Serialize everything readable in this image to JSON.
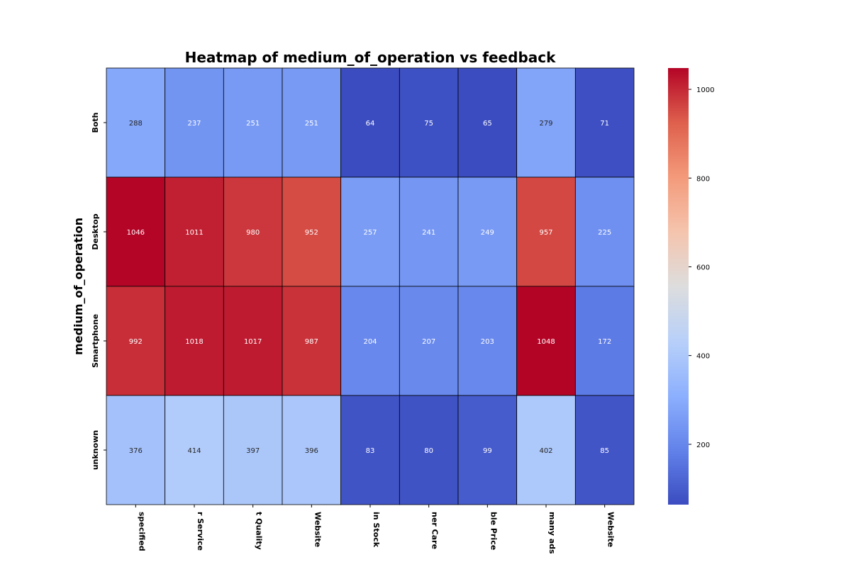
{
  "chart_data": {
    "type": "heatmap",
    "title": "Heatmap of medium_of_operation vs feedback",
    "xlabel": "",
    "ylabel": "medium_of_operation",
    "rows": [
      "Both",
      "Desktop",
      "Smartphone",
      "unknown"
    ],
    "columns": [
      "Not specified",
      "Customer Service",
      "Product Quality",
      "User-Friendly Website",
      "Products in Stock",
      "Customer Care",
      "Reasonable Price",
      "Too many ads",
      "Website"
    ],
    "column_tick_labels_visible": [
      "specified",
      "r Service",
      "t Quality",
      "Website",
      "in Stock",
      "ner Care",
      "ble Price",
      "many ads",
      "Website"
    ],
    "values": [
      [
        288,
        237,
        251,
        251,
        64,
        75,
        65,
        279,
        71
      ],
      [
        1046,
        1011,
        980,
        952,
        257,
        241,
        249,
        957,
        225
      ],
      [
        992,
        1018,
        1017,
        987,
        204,
        207,
        203,
        1048,
        172
      ],
      [
        376,
        414,
        397,
        396,
        83,
        80,
        99,
        402,
        85
      ]
    ],
    "colormap": "coolwarm",
    "colorbar": {
      "min": 64,
      "max": 1048,
      "ticks": [
        200,
        400,
        600,
        800,
        1000
      ]
    },
    "annotations": true,
    "cell_border_color": "#000000"
  }
}
